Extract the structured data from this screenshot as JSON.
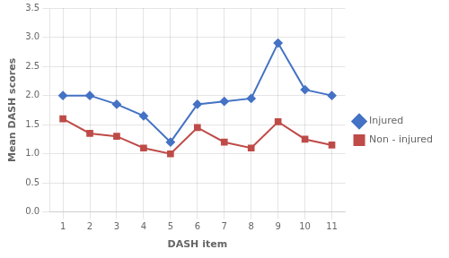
{
  "chart_data": {
    "type": "line",
    "x_label": "DASH item",
    "y_label": "Mean DASH scores",
    "x": [
      1,
      2,
      3,
      4,
      5,
      6,
      7,
      8,
      9,
      10,
      11
    ],
    "series": [
      {
        "name": "Injured",
        "color": "#4472C4",
        "marker": "diamond",
        "values": [
          2.0,
          2.0,
          1.85,
          1.65,
          1.2,
          1.85,
          1.9,
          1.95,
          2.9,
          2.1,
          2.0
        ]
      },
      {
        "name": "Non - injured",
        "color": "#BE4B48",
        "marker": "square",
        "values": [
          1.6,
          1.35,
          1.3,
          1.1,
          1.0,
          1.45,
          1.2,
          1.1,
          1.55,
          1.25,
          1.15
        ]
      }
    ],
    "xlim": [
      0.5,
      11.5
    ],
    "xticks": [
      1,
      2,
      3,
      4,
      5,
      6,
      7,
      8,
      9,
      10,
      11
    ],
    "ylim": [
      0,
      3.5
    ],
    "yticks": [
      {
        "value": 0,
        "label": "0.0"
      },
      {
        "value": 0.5,
        "label": "0.5"
      },
      {
        "value": 1.0,
        "label": "1.0"
      },
      {
        "value": 1.5,
        "label": "1.5"
      },
      {
        "value": 2.0,
        "label": "2.0"
      },
      {
        "value": 2.5,
        "label": "2.5"
      },
      {
        "value": 3.0,
        "label": "3.0"
      },
      {
        "value": 3.5,
        "label": "3.5"
      }
    ],
    "grid": true,
    "legend": "right"
  }
}
